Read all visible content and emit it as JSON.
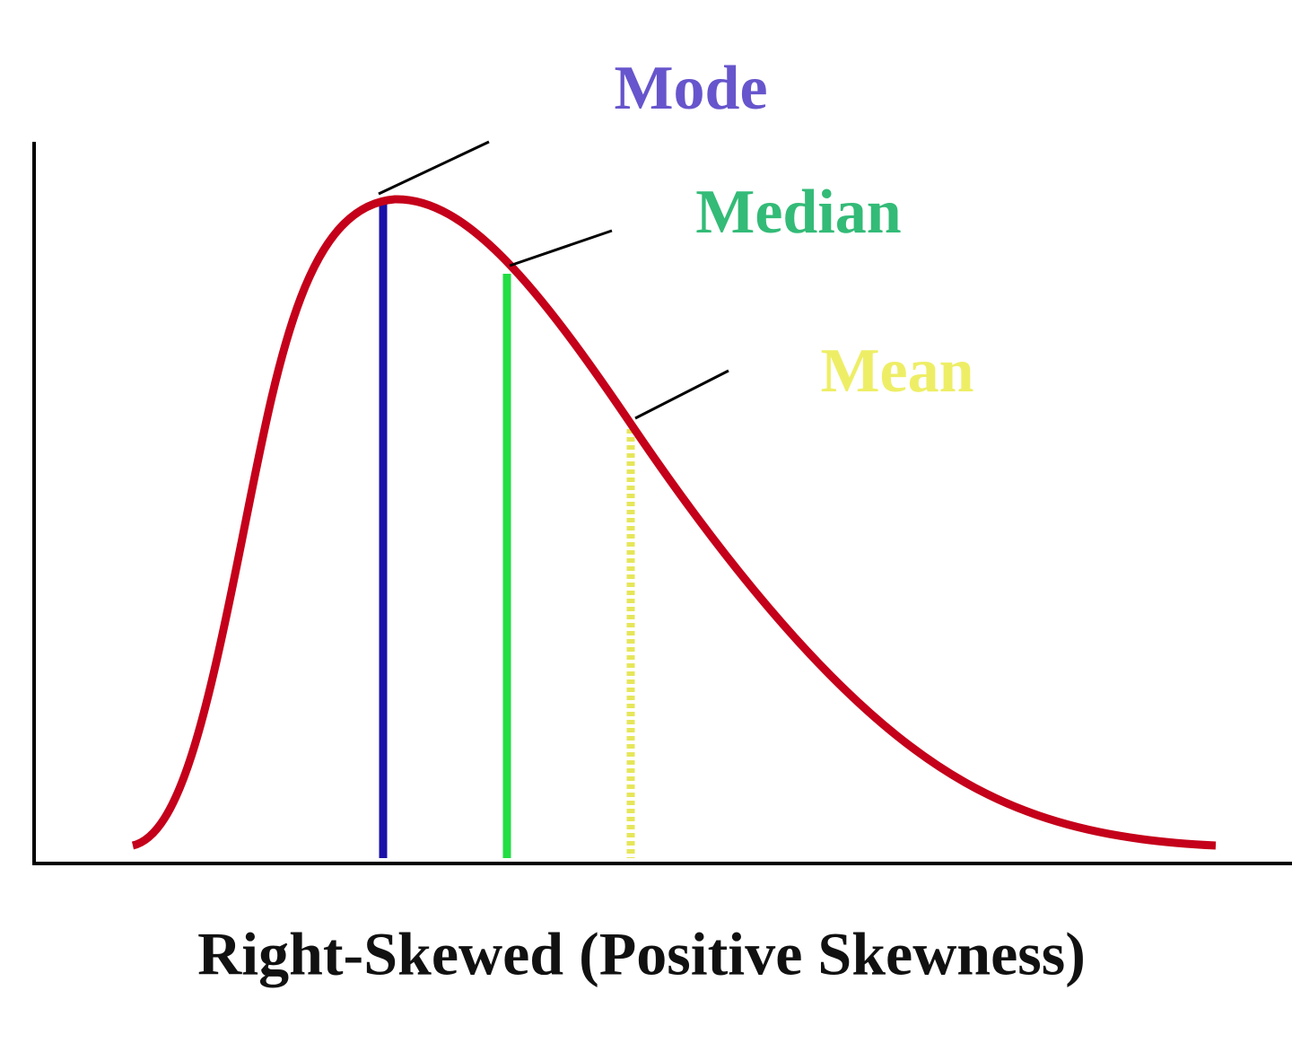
{
  "labels": {
    "mode": "Mode",
    "median": "Median",
    "mean": "Mean"
  },
  "caption": "Right-Skewed (Positive Skewness)"
}
